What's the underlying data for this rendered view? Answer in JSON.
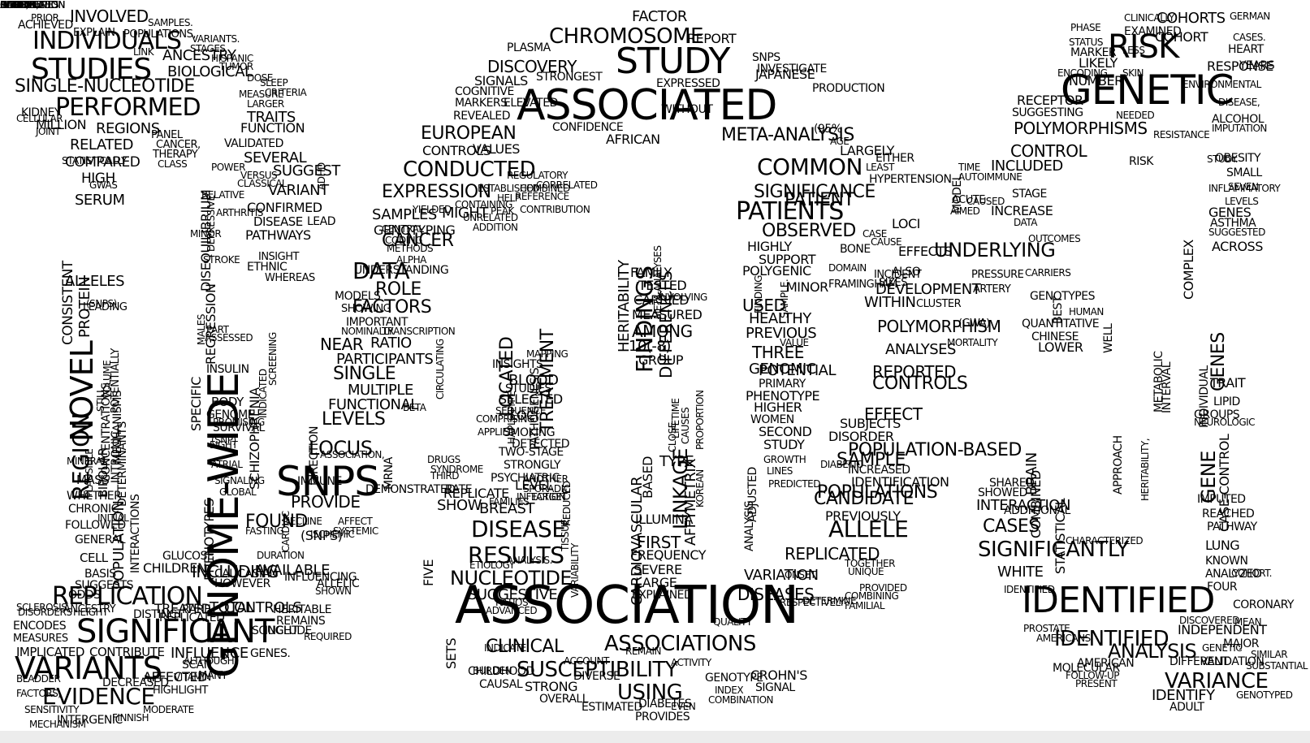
{
  "words": [
    "ASSOCIATED",
    "ASSOCIATION",
    "GENETIC",
    "GENOME-WIDE",
    "SNPS",
    "IDENTIFIED",
    "STUDY",
    "SIGNIFICANT",
    "VARIANTS",
    "STUDIES",
    "INDIVIDUALS",
    "PERFORMED",
    "SINGLE-NUCLEOTIDE",
    "REPLICATION",
    "EVIDENCE",
    "INVOLVED",
    "ANCESTRY",
    "BIOLOGICAL",
    "REGIONS",
    "MILLION",
    "RELATED",
    "COMPARED",
    "HIGH",
    "SERUM",
    "ALLELES",
    "NOVEL",
    "REGION",
    "PROTEIN",
    "CONSISTENT",
    "BIPOLAR",
    "MECHANISMS",
    "POPULATION",
    "MASS",
    "WHETHER",
    "CHRONIC",
    "FOLLOWED",
    "GENERAL",
    "CELL",
    "BASIS",
    "SUGGESTS",
    "ODDS",
    "ANCESTRY",
    "ENCODES",
    "MEASURES",
    "IMPLICATED",
    "CONTRIBUTE",
    "INFLUENCE",
    "AFFECTED",
    "SCAN",
    "MANY",
    "TOTAL",
    "INCLUDING",
    "CONTROLS",
    "CHILDREN",
    "GLUCOSE",
    "FOUND",
    "PROVIDE",
    "LOCUS",
    "LEVELS",
    "FUNCTIONAL",
    "MULTIPLE",
    "SINGLE",
    "PARTICIPANTS",
    "NEAR",
    "RATIO",
    "FACTORS",
    "ROLE",
    "DATA",
    "CANCER",
    "SAMPLES",
    "MIGHT",
    "GENOTYPING",
    "EXPRESSION",
    "CONDUCTED",
    "CONTROLS",
    "VALUES",
    "EUROPEAN",
    "DISCOVERY",
    "SIGNALS",
    "MARKERS",
    "REVEALED",
    "STRONGEST",
    "CHROMOSOME",
    "FACTOR",
    "PLASMA",
    "REPORT",
    "SNPS",
    "EXPRESSED",
    "JAPANESE",
    "COGNITIVE",
    "CONFIDENCE",
    "AFRICAN",
    "META-ANALYSIS",
    "META-ANALYSES",
    "COMMON",
    "SIGNIFICANCE",
    "PATIENTS",
    "PATIENT",
    "OBSERVED",
    "HIGHLY",
    "SUPPORT",
    "POLYGENIC",
    "MINOR",
    "USED",
    "HEALTHY",
    "PREVIOUS",
    "THREE",
    "GENOMIC",
    "PRIMARY",
    "PHENOTYPE",
    "HIGHER",
    "WOMEN",
    "SECOND",
    "STUDY",
    "ADJUSTED",
    "ANALYSIS",
    "HERITABILITY",
    "FINDINGS",
    "DIFFERENCES",
    "FAMILY",
    "TESTED",
    "CARRIED",
    "MEASURED",
    "AMONG",
    "10(-8)",
    "GROUP",
    "LINKAGE",
    "TYPE",
    "CARDIOVASCULAR",
    "BASED",
    "AFFYMETRIX",
    "KOREAN",
    "ILLUMINA",
    "FIRST",
    "FREQUENCY",
    "SEVERE",
    "LARGE",
    "EXPLAINED",
    "SUSCEPTIBILITY",
    "USING",
    "GENOTYPE",
    "INDEX",
    "DIABETES",
    "ASSOCIATIONS",
    "CLINICAL",
    "STRONG",
    "OVERALL",
    "RESULTS",
    "DISEASE",
    "NUCLEOTIDE",
    "SUGGESTIVE",
    "SHOW",
    "BREAST",
    "REPLICATE",
    "RATE",
    "LEVEL",
    "STRONGLY",
    "DETECTED",
    "TWO-STAGE",
    "SMOKING",
    "LOCI",
    "SELECTED",
    "STUDIES",
    "BLOOD",
    "INSIGHTS",
    "LOCATED",
    "TREATMENT",
    "PATHOGENESIS",
    "HAPLOTYPE",
    "CIRCULATING",
    "UNDERSTANDING",
    "GENOME",
    "BODY",
    "SURVIVAL",
    "(SNP)",
    "PHENOTYPES",
    "SPECIFIC",
    "REGRESSION",
    "DISEQUILIBRIUM",
    "SCHIZOPHRENIA",
    "INSULIN",
    "PATHWAYS",
    "INSIGHT",
    "DISEASE",
    "LEAD",
    "CONFIRMED",
    "VARIANT",
    "SUGGEST",
    "SEVERAL",
    "VALIDATED",
    "FUNCTION",
    "TRAITS",
    "LARGER",
    "CONTROL",
    "VARIATION",
    "REPLICATED",
    "ALLELE",
    "CANDIDATE",
    "POPULATIONS",
    "IDENTIFICATION",
    "INCREASED",
    "SAMPLE",
    "POPULATION-BASED",
    "DISORDER",
    "SUBJECTS",
    "EFFECT",
    "CONTROLS",
    "REPORTED",
    "ANALYSES",
    "POLYMORPHISM",
    "WITHIN",
    "DEVELOPMENT",
    "ALSO",
    "UNDERLYING",
    "EFFECTS",
    "LOCI",
    "INCREASE",
    "STAGE",
    "INCLUDED",
    "RISK",
    "RISK",
    "POLYMORPHISMS",
    "COHORTS",
    "COHORT",
    "EXAMINED",
    "RESPONSE",
    "HEART",
    "YEARS",
    "ALCOHOL",
    "NUMBER",
    "RECEPTOR",
    "SUGGESTING",
    "LIKELY",
    "MARKER",
    "ENCODING",
    "OBESITY",
    "SMALL",
    "SEVEN",
    "LEVELS",
    "GENES",
    "ASTHMA",
    "SUGGESTED",
    "ACROSS",
    "COMPLEX",
    "INDIVIDUAL",
    "GENES",
    "GENE",
    "CASE-CONTROL",
    "TRAIT",
    "LIPID",
    "GROUPS",
    "IMPUTED",
    "REACHED",
    "PATHWAY",
    "LUNG",
    "KNOWN",
    "ANALYZED",
    "FOUR",
    "CORONARY",
    "IDENTIFIED",
    "ANALYSIS",
    "INDEPENDENT",
    "MAJOR",
    "VARIANCE",
    "IDENTIFY",
    "GENOTYPED",
    "ADULT",
    "AMERICAN",
    "DIFFERENT",
    "VALIDATION",
    "FOLLOW-UP",
    "PRESENT",
    "MOLECULAR",
    "AMERICANS",
    "PROSTATE",
    "WHITE",
    "SIGNIFICANTLY",
    "CASES",
    "ADDITIONAL",
    "INTERACTION",
    "SHOWED",
    "SHARED",
    "BRAIN",
    "COMBINED",
    "STATISTICAL",
    "QUANTITATIVE",
    "CHINESE",
    "LOWER",
    "HUMAN",
    "DISEASES",
    "PREVIOUSLY",
    "INFLUENCING",
    "ALLELIC",
    "SHOWN",
    "TREATED",
    "RARE",
    "HERITABLE",
    "HOWEVER",
    "CAUCASIAN",
    "AVAILABLE",
    "(SNPS)",
    "(95%",
    "AGE",
    "CROHN'S",
    "SIGNAL",
    "WITHOUT",
    "SETS",
    "FIVE",
    "ESTIMATED",
    "PROVIDES",
    "CHILDHOOD",
    "CAUSAL",
    "INDICATE",
    "DIVERSE",
    "INVESTIGATE",
    "RESPECTIVELY",
    "HYPERTENSION",
    "LEAST",
    "EITHER",
    "LARGELY",
    "POTENTIAL",
    "VALUE",
    "REPLICATED",
    "DISTINCT",
    "DISORDERS",
    "HEIGHT",
    "GENES.",
    "SOUGHT",
    "INCLUDE",
    "REMAINS",
    "ETIOLOGY",
    "ANALYSIS.",
    "PSYCHIATRIC",
    "RELATIVE",
    "ETHNIC",
    "WHEREAS",
    "DECREASED",
    "HIGHLIGHT",
    "INTERACTIONS",
    "DETERMINANTS",
    "LEADING",
    "CONCENTRATIONS",
    "POTENTIALLY",
    "INTRONIC",
    "STATISTICALLY",
    "GWAS",
    "PANEL",
    "CANCER,",
    "THERAPY",
    "CLASS",
    "POWER",
    "KIDNEY",
    "CELLULAR",
    "SAMPLES.",
    "POPULATIONS,",
    "EXPLAIN",
    "ACHIEVED",
    "PRIOR",
    "VARIANTS.",
    "STAGES",
    "HISPANIC",
    "TUMOR",
    "DOSE",
    "SLEEP",
    "CRITERIA",
    "MEASURE",
    "ADHD",
    "DEMONSTRATED",
    "IMMUNE",
    "CARDIAC",
    "DIRECTION",
    "MRNA",
    "BETA",
    "DRUGS",
    "SYNDROME",
    "THIRD",
    "INFECTION",
    "FAMILIES",
    "SPORADIC",
    "ANOTHER",
    "TARGET",
    "MODELS",
    "SHOWING",
    "IMPORTANT",
    "NOMINALLY",
    "TRANSCRIPTION",
    "MAPPING",
    "SEQUENCE",
    "COMPRISING",
    "APPLIED",
    "PRODUCTION",
    "ELEVATED",
    "IDENTIFIED",
    "COHORT.",
    "GENETIC",
    "DISCOVERED",
    "MEAN",
    "SIMILAR",
    "SUBSTANTIAL",
    "SIZES",
    "INCIDENT",
    "ARTERY",
    "PRESSURE",
    "CLUSTER",
    "(GWA)",
    "MORTALITY",
    "DIABETIC",
    "SAMPLE.",
    "DOMAIN",
    "FRAMINGHAM",
    "BONE",
    "CASE",
    "CAUSE",
    "FINDING",
    "TIME",
    "AUTOIMMUNE",
    "ACUTE",
    "AIMED",
    "MODEL",
    "CARRIERS",
    "GENOTYPES",
    "BEST",
    "WELL",
    "APPROACH",
    "METABOLIC",
    "INTERVAL",
    "INFLAMMATORY",
    "ENVIRONMENTAL",
    "IMPUTATION",
    "STUDY.",
    "DISEASE,",
    "CASES.",
    "GERMAN",
    "CLINICALLY",
    "PHASE",
    "STATUS",
    "LESS",
    "NEEDED",
    "SKIN",
    "CAUSED",
    "DATA",
    "OUTCOMES",
    "CHARACTERIZED",
    "PREDICTED",
    "LINES",
    "GROWTH",
    "ONSET",
    "UNIQUE",
    "TOGETHER",
    "PROVIDED",
    "COMBINING",
    "FAMILIAL",
    "DETERMINE",
    "JOINT",
    "ACCOUNT",
    "REMAIN",
    "EVEN",
    "COMBINATION",
    "REDUCED",
    "ACTIVITY",
    "QUALITY",
    "RATIOS",
    "ADVANCED",
    "TISSUE",
    "VARIABILITY",
    "CAUSES",
    "LIFETIME",
    "CLOSE",
    "PROPORTION",
    "INVOLVING",
    "REFERENCE",
    "CONTRIBUTION",
    "CORRELATED",
    "ESTABLISHED",
    "REGULATORY",
    "COMBINED",
    "HELP",
    "PEAK",
    "ADDITION",
    "UNRELATED",
    "CONTAINING",
    "YIELDED",
    "CODING",
    "METHODS",
    "ALPHA",
    "CENTRAL",
    "STILL",
    "VOLUME",
    "PLAUSIBLE",
    "MINERAL",
    "INITIAL",
    "SCLEROSIS",
    "BLADDER",
    "FACTORS,",
    "SENSITIVITY",
    "MECHANISM",
    "INTERGENIC",
    "FINNISH",
    "MODERATE",
    "VITAMIN",
    "ALTHOUGH",
    "REQUIRED",
    "MALES",
    "PART",
    "ASSESSED",
    "FASTING",
    "DURATION",
    "ISCHEMIC",
    "SYSTEMIC",
    "AFFECT",
    "MINOR",
    "DEPRESSIVE",
    "ARTHRITIS",
    "STROKE",
    "PROMISING",
    "EIGHT",
    "ATRIAL",
    "DECLINE",
    "ASSOCIATION,",
    "GLOBAL",
    "SIGNALING",
    "SCREENING",
    "INDICATED",
    "(SNPS),",
    "VERSUS",
    "CLASSICAL",
    "BURDEN",
    "LINK",
    "RESISTANCE",
    "NEUROLOGIC",
    "HERITABILITY,",
    "ADULTS",
    "BASELINE",
    "INFLUENCED",
    "SEX",
    "CHILDREN.",
    "DISTRIBUTION",
    "HAPLOTYPES",
    "GENE,",
    "REGION,",
    "CORRELATION"
  ]
}
